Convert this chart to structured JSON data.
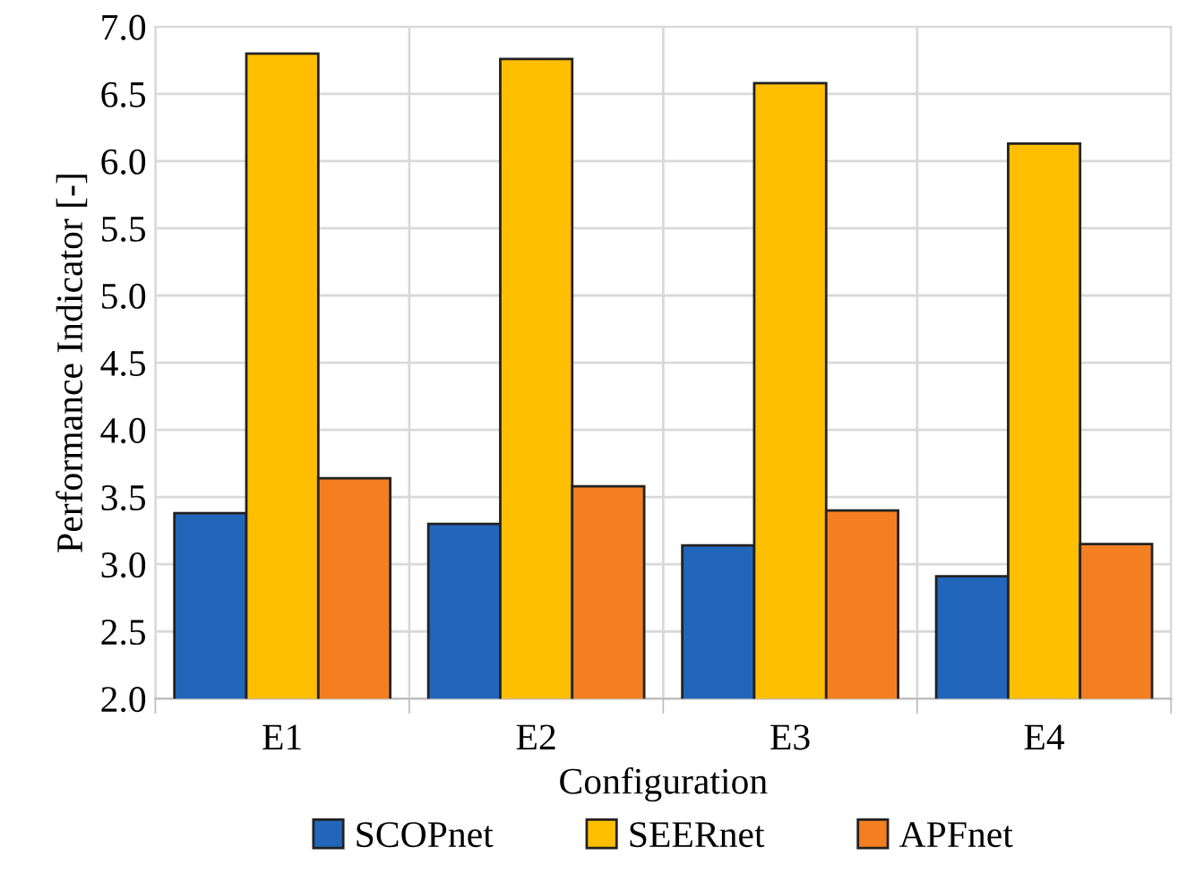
{
  "chart_data": {
    "type": "bar",
    "xlabel": "Configuration",
    "ylabel": "Performance Indicator [-]",
    "categories": [
      "E1",
      "E2",
      "E3",
      "E4"
    ],
    "series": [
      {
        "name": "SCOPnet",
        "color": "#2266bb",
        "values": [
          3.38,
          3.3,
          3.14,
          2.91
        ]
      },
      {
        "name": "SEERnet",
        "color": "#ffbf00",
        "values": [
          6.8,
          6.76,
          6.58,
          6.13
        ]
      },
      {
        "name": "APFnet",
        "color": "#f47f20",
        "values": [
          3.64,
          3.58,
          3.4,
          3.15
        ]
      }
    ],
    "ylim": [
      2.0,
      7.0
    ],
    "yticks": [
      {
        "value": 2.0,
        "label": "2.0"
      },
      {
        "value": 2.5,
        "label": "2.5"
      },
      {
        "value": 3.0,
        "label": "3.0"
      },
      {
        "value": 3.5,
        "label": "3.5"
      },
      {
        "value": 4.0,
        "label": "4.0"
      },
      {
        "value": 4.5,
        "label": "4.5"
      },
      {
        "value": 5.0,
        "label": "5.0"
      },
      {
        "value": 5.5,
        "label": "5.5"
      },
      {
        "value": 6.0,
        "label": "6.0"
      },
      {
        "value": 6.5,
        "label": "6.5"
      },
      {
        "value": 7.0,
        "label": "7.0"
      }
    ],
    "grid": true,
    "legend": "bottom"
  }
}
